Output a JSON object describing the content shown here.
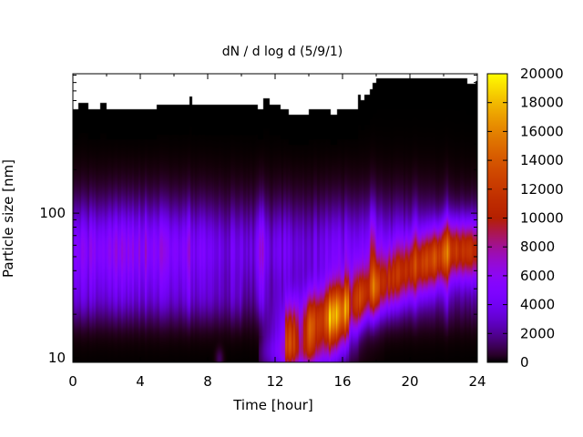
{
  "chart_data": {
    "type": "heatmap",
    "title": "dN / d log d (5/9/1)",
    "xlabel": "Time [hour]",
    "ylabel": "Particle size [nm]",
    "xlim": [
      0,
      24
    ],
    "ylim_nm": [
      9.3,
      920
    ],
    "y_scale": "log",
    "x_ticks": [
      0,
      4,
      8,
      12,
      16,
      20,
      24
    ],
    "x_tick_labels": [
      "0",
      "4",
      "8",
      "12",
      "16",
      "20",
      "24"
    ],
    "y_ticks": [
      10,
      100
    ],
    "y_tick_labels": [
      "10",
      "100"
    ],
    "colorbar": {
      "range": [
        0,
        20000
      ],
      "ticks": [
        0,
        2000,
        4000,
        6000,
        8000,
        10000,
        12000,
        14000,
        16000,
        18000,
        20000
      ],
      "tick_labels": [
        "0",
        "2000",
        "4000",
        "6000",
        "8000",
        "10000",
        "12000",
        "14000",
        "16000",
        "18000",
        "20000"
      ],
      "palette": "black-purple-red-orange-yellow",
      "colors": [
        "#000000",
        "#3c005a",
        "#7a00ff",
        "#b7007f",
        "#d62a12",
        "#f07a00",
        "#fbd500",
        "#ffff00"
      ]
    },
    "missing_data_color": "#ffffff",
    "features": {
      "upper_size_limit_nm": [
        [
          0,
          520
        ],
        [
          0.3,
          580
        ],
        [
          0.9,
          520
        ],
        [
          1.4,
          520
        ],
        [
          1.6,
          580
        ],
        [
          2.0,
          520
        ],
        [
          4.9,
          520
        ],
        [
          5.0,
          560
        ],
        [
          6.8,
          560
        ],
        [
          6.9,
          640
        ],
        [
          7.1,
          560
        ],
        [
          8.7,
          560
        ],
        [
          10.7,
          560
        ],
        [
          11.0,
          520
        ],
        [
          11.3,
          620
        ],
        [
          11.7,
          560
        ],
        [
          12.3,
          520
        ],
        [
          12.8,
          480
        ],
        [
          13.8,
          480
        ],
        [
          14.0,
          520
        ],
        [
          15.3,
          480
        ],
        [
          15.7,
          520
        ],
        [
          16.8,
          520
        ],
        [
          16.9,
          660
        ],
        [
          17.1,
          600
        ],
        [
          17.3,
          660
        ],
        [
          17.6,
          720
        ],
        [
          17.8,
          800
        ],
        [
          18.0,
          860
        ],
        [
          22.8,
          860
        ],
        [
          23.4,
          780
        ],
        [
          23.9,
          820
        ],
        [
          24,
          820
        ]
      ],
      "background_mode_nm": 55,
      "nucleation_onset_hour": 11.0,
      "growth_banana_points": [
        [
          12.8,
          14
        ],
        [
          14,
          16
        ],
        [
          16,
          20
        ],
        [
          17.5,
          28
        ],
        [
          20,
          40
        ],
        [
          22.5,
          55
        ]
      ],
      "peak_concentration_region": {
        "hour": 16.0,
        "size_nm": 16,
        "value": 17000
      },
      "late_mode": {
        "hour": 22.2,
        "size_nm": 65,
        "value": 11500
      }
    }
  }
}
